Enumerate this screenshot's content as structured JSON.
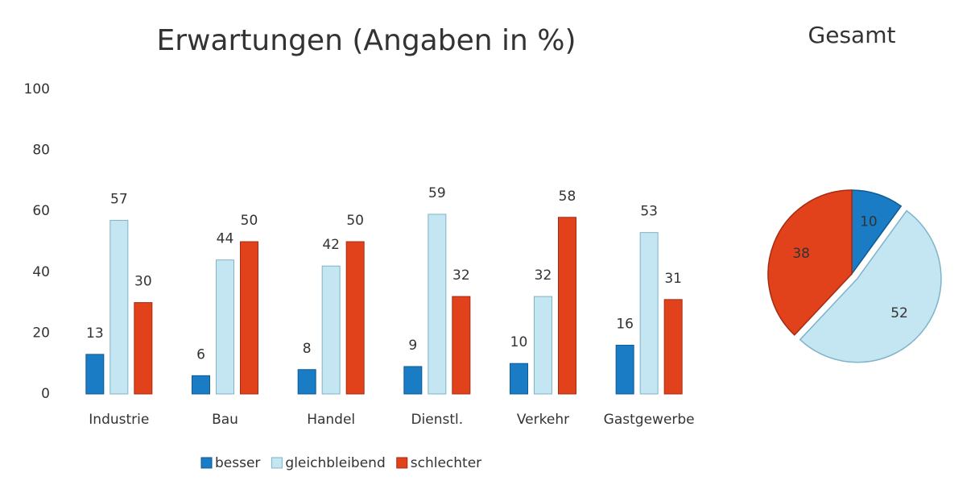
{
  "chart_data": [
    {
      "type": "bar",
      "title": "Erwartungen (Angaben in %)",
      "categories": [
        "Industrie",
        "Bau",
        "Handel",
        "Dienstl.",
        "Verkehr",
        "Gastgewerbe"
      ],
      "series": [
        {
          "name": "besser",
          "color": "#1a7cc4",
          "values": [
            13,
            6,
            8,
            9,
            10,
            16
          ]
        },
        {
          "name": "gleichbleibend",
          "color": "#c3e6f2",
          "values": [
            57,
            44,
            42,
            59,
            32,
            53
          ]
        },
        {
          "name": "schlechter",
          "color": "#e1421c",
          "values": [
            30,
            50,
            50,
            32,
            58,
            31
          ]
        }
      ],
      "ylim": [
        0,
        100
      ],
      "yticks": [
        0,
        20,
        40,
        60,
        80,
        100
      ],
      "grid": false,
      "legend": "bottom"
    },
    {
      "type": "pie",
      "title": "Gesamt",
      "categories": [
        "besser",
        "gleichbleibend",
        "schlechter"
      ],
      "values": [
        10,
        52,
        38
      ],
      "colors": [
        "#1a7cc4",
        "#c3e6f2",
        "#e1421c"
      ]
    }
  ]
}
